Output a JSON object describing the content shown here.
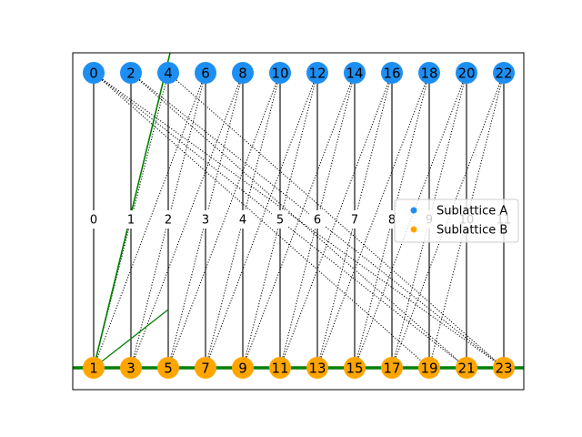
{
  "diagram": {
    "top_row": {
      "nodes": [
        "0",
        "2",
        "4",
        "6",
        "8",
        "10",
        "12",
        "14",
        "16",
        "18",
        "20",
        "22"
      ],
      "color": "#1e8ff2"
    },
    "bottom_row": {
      "nodes": [
        "1",
        "3",
        "5",
        "7",
        "9",
        "11",
        "13",
        "15",
        "17",
        "19",
        "21",
        "23"
      ],
      "color": "#ffa500"
    },
    "middle_labels": [
      "0",
      "1",
      "2",
      "3",
      "4",
      "5",
      "6",
      "7",
      "8",
      "9",
      "10",
      "11"
    ],
    "vertical_edges": [
      [
        0,
        0
      ],
      [
        1,
        1
      ],
      [
        2,
        2
      ],
      [
        3,
        3
      ],
      [
        4,
        4
      ],
      [
        5,
        5
      ],
      [
        6,
        6
      ],
      [
        7,
        7
      ],
      [
        8,
        8
      ],
      [
        9,
        9
      ],
      [
        10,
        10
      ],
      [
        11,
        11
      ]
    ],
    "dotted_edges": [
      [
        0,
        9
      ],
      [
        0,
        10
      ],
      [
        0,
        11
      ],
      [
        1,
        10
      ],
      [
        1,
        11
      ],
      [
        2,
        0
      ],
      [
        2,
        11
      ],
      [
        3,
        0
      ],
      [
        3,
        1
      ],
      [
        4,
        1
      ],
      [
        4,
        2
      ],
      [
        5,
        2
      ],
      [
        5,
        3
      ],
      [
        6,
        3
      ],
      [
        6,
        4
      ],
      [
        7,
        4
      ],
      [
        7,
        5
      ],
      [
        8,
        5
      ],
      [
        8,
        6
      ],
      [
        9,
        6
      ],
      [
        9,
        7
      ],
      [
        10,
        7
      ],
      [
        10,
        8
      ],
      [
        11,
        8
      ],
      [
        11,
        9
      ]
    ],
    "highlight_color": "#008000"
  },
  "legend": {
    "items": [
      {
        "label": "Sublattice A",
        "color": "#1e8ff2"
      },
      {
        "label": "Sublattice B",
        "color": "#ffa500"
      }
    ]
  }
}
